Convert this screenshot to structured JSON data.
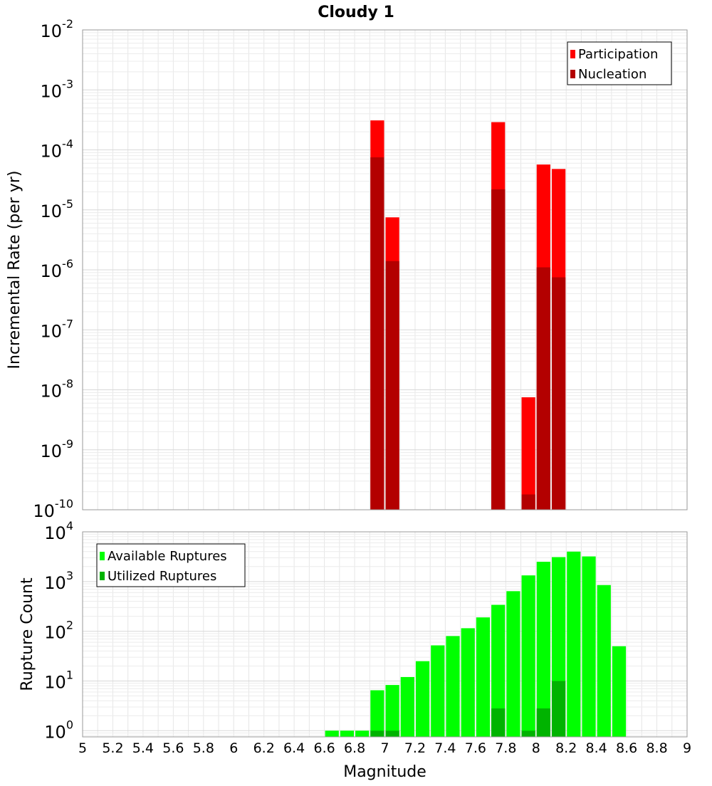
{
  "title": "Cloudy 1",
  "chart_data": [
    {
      "type": "bar",
      "panel": "top",
      "x": [
        6.95,
        7.05,
        7.75,
        7.95,
        8.05,
        8.15
      ],
      "series": [
        {
          "name": "Participation",
          "color": "#ff0000",
          "values": [
            0.00031,
            7.5e-06,
            0.00029,
            7.5e-09,
            5.7e-05,
            4.8e-05
          ]
        },
        {
          "name": "Nucleation",
          "color": "#b30000",
          "values": [
            7.5e-05,
            1.4e-06,
            2.2e-05,
            1.8e-10,
            1.1e-06,
            7.5e-07
          ]
        }
      ],
      "ylabel": "Incremental Rate (per yr)",
      "yscale": "log",
      "ylim": [
        1e-10,
        0.01
      ],
      "y_ticks": [
        {
          "value": 1e-10,
          "base": "10",
          "exp": "-10"
        },
        {
          "value": 1e-09,
          "base": "10",
          "exp": "-9"
        },
        {
          "value": 1e-08,
          "base": "10",
          "exp": "-8"
        },
        {
          "value": 1e-07,
          "base": "10",
          "exp": "-7"
        },
        {
          "value": 1e-06,
          "base": "10",
          "exp": "-6"
        },
        {
          "value": 1e-05,
          "base": "10",
          "exp": "-5"
        },
        {
          "value": 0.0001,
          "base": "10",
          "exp": "-4"
        },
        {
          "value": 0.001,
          "base": "10",
          "exp": "-3"
        },
        {
          "value": 0.01,
          "base": "10",
          "exp": "-2"
        }
      ],
      "xlim": [
        5,
        9
      ],
      "grid": true,
      "legend_position": "top-right"
    },
    {
      "type": "bar",
      "panel": "bottom",
      "x": [
        6.65,
        6.75,
        6.85,
        6.95,
        7.05,
        7.15,
        7.25,
        7.35,
        7.45,
        7.55,
        7.65,
        7.75,
        7.85,
        7.95,
        8.05,
        8.15,
        8.25,
        8.35,
        8.45,
        8.55
      ],
      "series": [
        {
          "name": "Available Ruptures",
          "color": "#00ff00",
          "values": [
            1,
            1,
            1,
            6.5,
            8.3,
            12,
            25,
            52,
            80,
            115,
            190,
            340,
            640,
            1330,
            2500,
            3100,
            4000,
            3200,
            850,
            50
          ]
        },
        {
          "name": "Utilized Ruptures",
          "color": "#00b300",
          "values": [
            null,
            null,
            null,
            1,
            1,
            null,
            null,
            null,
            null,
            null,
            null,
            2.8,
            null,
            1,
            2.8,
            10,
            null,
            null,
            null,
            null
          ]
        }
      ],
      "xlabel": "Magnitude",
      "ylabel": "Rupture Count",
      "yscale": "log",
      "ylim": [
        0.75,
        10000
      ],
      "y_ticks": [
        {
          "value": 1,
          "base": "10",
          "exp": "0"
        },
        {
          "value": 10,
          "base": "10",
          "exp": "1"
        },
        {
          "value": 100,
          "base": "10",
          "exp": "2"
        },
        {
          "value": 1000,
          "base": "10",
          "exp": "3"
        },
        {
          "value": 10000,
          "base": "10",
          "exp": "4"
        }
      ],
      "xlim": [
        5,
        9
      ],
      "x_ticks": [
        "5",
        "5.2",
        "5.4",
        "5.6",
        "5.8",
        "6",
        "6.2",
        "6.4",
        "6.6",
        "6.8",
        "7",
        "7.2",
        "7.4",
        "7.6",
        "7.8",
        "8",
        "8.2",
        "8.4",
        "8.6",
        "8.8",
        "9"
      ],
      "grid": true,
      "legend_position": "top-left"
    }
  ]
}
